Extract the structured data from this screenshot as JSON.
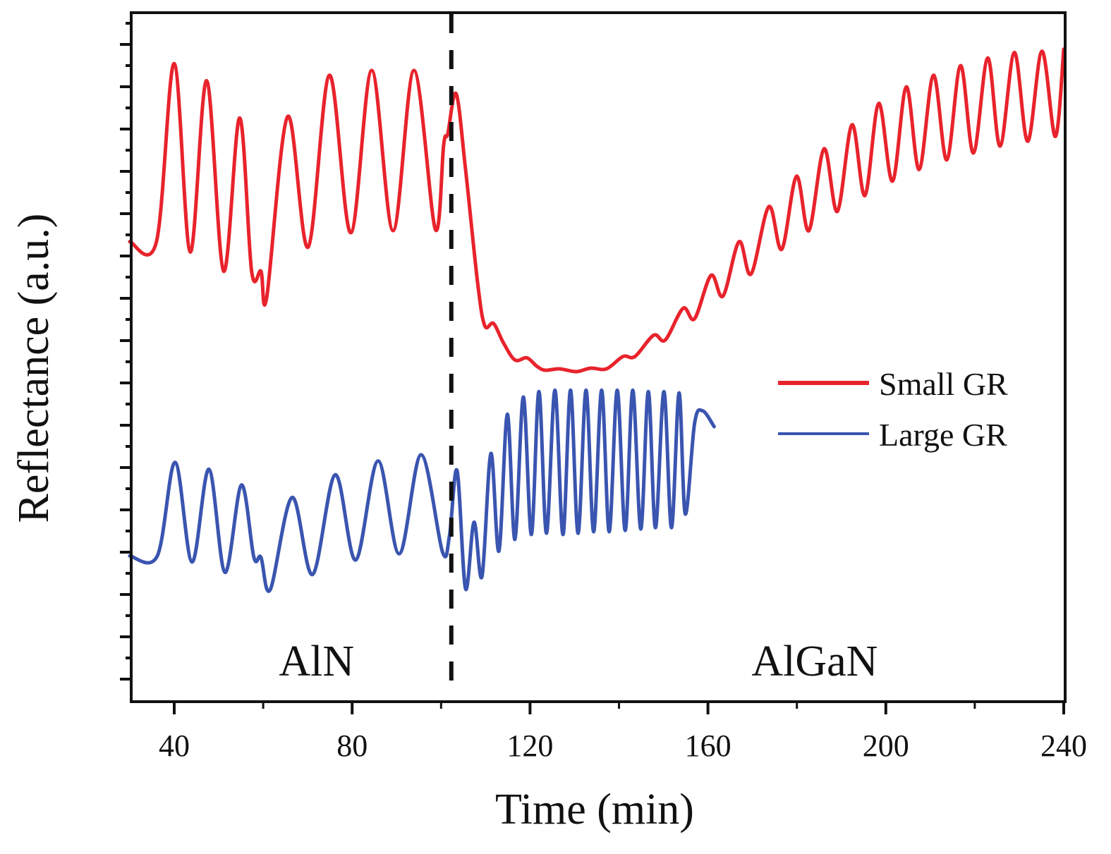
{
  "chart_data": {
    "type": "line",
    "title": "",
    "xlabel": "Time (min)",
    "ylabel": "Reflectance (a.u.)",
    "xlim": [
      30,
      240
    ],
    "ylim": [
      0,
      100
    ],
    "x_ticks": [
      40,
      80,
      120,
      160,
      200,
      240
    ],
    "x_tick_labels": [
      "40",
      "80",
      "120",
      "160",
      "200",
      "240"
    ],
    "x_minor_ticks": [
      60,
      100,
      140,
      180,
      220
    ],
    "y_tick_labels": [],
    "grid": false,
    "legend_position": "center-right",
    "annotations": [
      {
        "type": "vline",
        "x": 102.3,
        "style": "dashed",
        "color": "#111111"
      },
      {
        "type": "text",
        "text": "AlN",
        "x": 72,
        "y": 5
      },
      {
        "type": "text",
        "text": "AlGaN",
        "x": 184,
        "y": 5
      }
    ],
    "series": [
      {
        "name": "Small GR",
        "color": "#e8232c",
        "points": [
          [
            30,
            66.7
          ],
          [
            36.0,
            66.7
          ],
          [
            40.0,
            92.6
          ],
          [
            43.6,
            65.2
          ],
          [
            47.3,
            90.1
          ],
          [
            51.1,
            62.4
          ],
          [
            54.7,
            84.7
          ],
          [
            57.4,
            62.4
          ],
          [
            59.5,
            62.4
          ],
          [
            60.8,
            58.6
          ],
          [
            65.5,
            84.9
          ],
          [
            70.1,
            65.9
          ],
          [
            74.9,
            90.9
          ],
          [
            79.7,
            68.0
          ],
          [
            84.4,
            91.6
          ],
          [
            89.2,
            68.3
          ],
          [
            93.9,
            91.6
          ],
          [
            98.7,
            68.5
          ],
          [
            100.6,
            80.9
          ],
          [
            101.5,
            82.4
          ],
          [
            103.4,
            88.2
          ],
          [
            105.5,
            77.2
          ],
          [
            108.2,
            60.8
          ],
          [
            109.8,
            54.5
          ],
          [
            111.8,
            54.8
          ],
          [
            114.0,
            52.0
          ],
          [
            116.6,
            49.5
          ],
          [
            119.3,
            49.8
          ],
          [
            121.5,
            48.6
          ],
          [
            123.4,
            48.0
          ],
          [
            126.6,
            48.2
          ],
          [
            130.4,
            47.8
          ],
          [
            133.6,
            48.3
          ],
          [
            137.2,
            48.2
          ],
          [
            140.9,
            50.0
          ],
          [
            143.6,
            50.0
          ],
          [
            147.8,
            53.1
          ],
          [
            150.4,
            52.4
          ],
          [
            154.4,
            57.0
          ],
          [
            157.0,
            55.5
          ],
          [
            160.7,
            61.8
          ],
          [
            163.4,
            58.8
          ],
          [
            167.0,
            66.7
          ],
          [
            169.7,
            62.0
          ],
          [
            173.7,
            71.8
          ],
          [
            176.6,
            65.6
          ],
          [
            179.9,
            76.2
          ],
          [
            182.7,
            68.3
          ],
          [
            186.1,
            80.2
          ],
          [
            189.1,
            71.1
          ],
          [
            192.4,
            83.7
          ],
          [
            195.3,
            73.4
          ],
          [
            198.4,
            86.8
          ],
          [
            201.5,
            75.5
          ],
          [
            204.6,
            89.2
          ],
          [
            207.5,
            77.2
          ],
          [
            210.7,
            90.9
          ],
          [
            213.7,
            78.6
          ],
          [
            216.8,
            92.3
          ],
          [
            219.7,
            79.6
          ],
          [
            222.9,
            93.4
          ],
          [
            225.7,
            80.6
          ],
          [
            228.9,
            94.2
          ],
          [
            231.9,
            81.3
          ],
          [
            235.1,
            94.4
          ],
          [
            238.1,
            82.0
          ],
          [
            240.0,
            94.7
          ]
        ]
      },
      {
        "name": "Large GR",
        "color": "#3a55b0",
        "points": [
          [
            30,
            21.0
          ],
          [
            36.2,
            21.0
          ],
          [
            40.2,
            34.6
          ],
          [
            44.0,
            20.1
          ],
          [
            47.8,
            33.6
          ],
          [
            51.4,
            18.6
          ],
          [
            55.1,
            31.3
          ],
          [
            57.9,
            20.8
          ],
          [
            59.5,
            20.8
          ],
          [
            61.6,
            16.1
          ],
          [
            66.5,
            29.5
          ],
          [
            71.1,
            18.3
          ],
          [
            76.2,
            32.8
          ],
          [
            80.8,
            20.4
          ],
          [
            85.8,
            34.8
          ],
          [
            90.6,
            21.3
          ],
          [
            95.5,
            35.7
          ],
          [
            100.3,
            21.6
          ],
          [
            101.9,
            24.0
          ],
          [
            103.6,
            33.4
          ],
          [
            105.5,
            16.2
          ],
          [
            107.4,
            25.9
          ],
          [
            109.2,
            18.0
          ],
          [
            111.2,
            35.9
          ],
          [
            113.0,
            21.7
          ],
          [
            114.9,
            41.6
          ],
          [
            116.6,
            23.4
          ],
          [
            118.5,
            44.1
          ],
          [
            120.3,
            24.1
          ],
          [
            122.0,
            44.9
          ],
          [
            123.7,
            24.3
          ],
          [
            125.6,
            45.1
          ],
          [
            127.4,
            24.1
          ],
          [
            129.1,
            45.1
          ],
          [
            130.8,
            24.3
          ],
          [
            132.6,
            45.1
          ],
          [
            134.3,
            24.5
          ],
          [
            136.1,
            45.1
          ],
          [
            137.8,
            24.5
          ],
          [
            139.6,
            45.1
          ],
          [
            141.4,
            24.7
          ],
          [
            143.1,
            45.1
          ],
          [
            144.9,
            24.9
          ],
          [
            146.6,
            44.9
          ],
          [
            148.2,
            25.1
          ],
          [
            150.1,
            44.9
          ],
          [
            151.8,
            25.1
          ],
          [
            153.5,
            44.7
          ],
          [
            154.9,
            27.1
          ],
          [
            157.0,
            40.3
          ],
          [
            158.8,
            42.1
          ],
          [
            161.4,
            39.8
          ]
        ]
      }
    ]
  }
}
